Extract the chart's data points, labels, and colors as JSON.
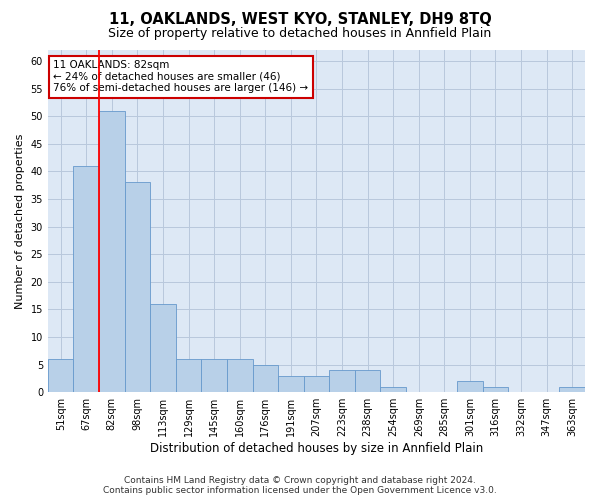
{
  "title": "11, OAKLANDS, WEST KYO, STANLEY, DH9 8TQ",
  "subtitle": "Size of property relative to detached houses in Annfield Plain",
  "xlabel": "Distribution of detached houses by size in Annfield Plain",
  "ylabel": "Number of detached properties",
  "categories": [
    "51sqm",
    "67sqm",
    "82sqm",
    "98sqm",
    "113sqm",
    "129sqm",
    "145sqm",
    "160sqm",
    "176sqm",
    "191sqm",
    "207sqm",
    "223sqm",
    "238sqm",
    "254sqm",
    "269sqm",
    "285sqm",
    "301sqm",
    "316sqm",
    "332sqm",
    "347sqm",
    "363sqm"
  ],
  "values": [
    6,
    41,
    51,
    38,
    16,
    6,
    6,
    6,
    5,
    3,
    3,
    4,
    4,
    1,
    0,
    0,
    2,
    1,
    0,
    0,
    1
  ],
  "bar_color": "#b8d0e8",
  "bar_edge_color": "#6699cc",
  "highlight_index": 2,
  "red_line_index": 2,
  "ylim": [
    0,
    62
  ],
  "yticks": [
    0,
    5,
    10,
    15,
    20,
    25,
    30,
    35,
    40,
    45,
    50,
    55,
    60
  ],
  "annotation_line1": "11 OAKLANDS: 82sqm",
  "annotation_line2": "← 24% of detached houses are smaller (46)",
  "annotation_line3": "76% of semi-detached houses are larger (146) →",
  "annotation_box_color": "#ffffff",
  "annotation_box_edge_color": "#cc0000",
  "footer_line1": "Contains HM Land Registry data © Crown copyright and database right 2024.",
  "footer_line2": "Contains public sector information licensed under the Open Government Licence v3.0.",
  "background_color": "#ffffff",
  "plot_bg_color": "#dde8f5",
  "grid_color": "#b8c8dc",
  "title_fontsize": 10.5,
  "subtitle_fontsize": 9,
  "tick_fontsize": 7,
  "ylabel_fontsize": 8,
  "xlabel_fontsize": 8.5,
  "annotation_fontsize": 7.5,
  "footer_fontsize": 6.5
}
